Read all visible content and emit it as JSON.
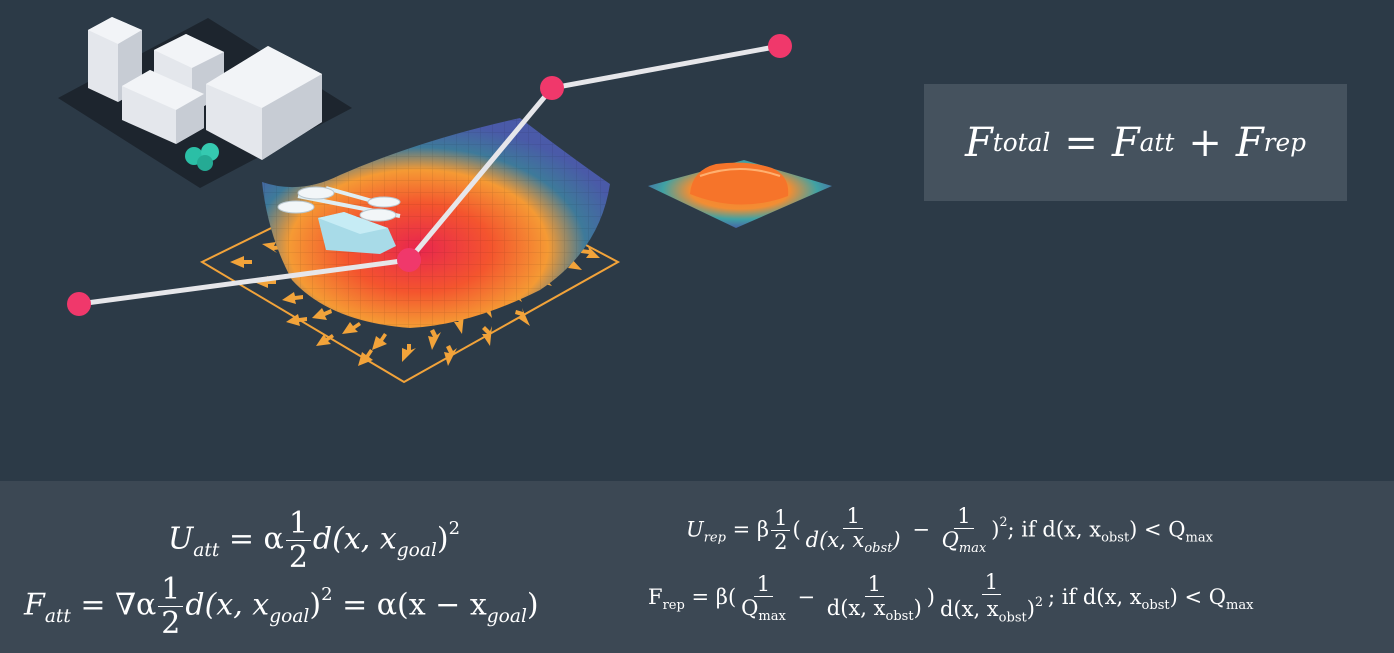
{
  "total_force": {
    "F": "F",
    "total_sub": "total",
    "equals": "=",
    "F_att": "F",
    "att_sub": "att",
    "plus": "+",
    "F_rep": "F",
    "rep_sub": "rep"
  },
  "attractive": {
    "U_lhs": "U",
    "U_sub": "att",
    "U_rhs_pre": "= α",
    "half_num": "1",
    "half_den": "2",
    "U_rhs_post": "d(x, x",
    "goal_sub": "goal",
    "close_sq": ")",
    "sq": "2",
    "F_lhs": "F",
    "F_sub": "att",
    "F_rhs_pre": "= ∇α",
    "F_rhs_post": "d(x, x",
    "F_tail": "= α(x − x",
    "F_tail_close": ")"
  },
  "repulsive": {
    "U_lhs": "U",
    "U_sub": "rep",
    "U_eq": "= β",
    "one": "1",
    "two": "2",
    "d_obst": "d(x,  x",
    "obst_sub": "obst",
    "Q_italic": "Q",
    "max_sub": "max",
    "minus": "−",
    "U_cond": "; if  d(x,  x",
    "U_cond_tail": ") < Q",
    "F_lhs": "F",
    "F_sub": "rep",
    "F_eq": "= β(",
    "Q_roman": "Q",
    "d_roman": "d(x,  x",
    "F_close": ")",
    "F_cond": "; if  d(x,  x",
    "F_cond_tail": ") < Q"
  },
  "colors": {
    "background": "#2c3a47",
    "panel": "#3c4854",
    "formula_box": "#45525e",
    "waypoint": "#f0386b",
    "path": "#e6e6ea",
    "arrow": "#f2a33a"
  }
}
